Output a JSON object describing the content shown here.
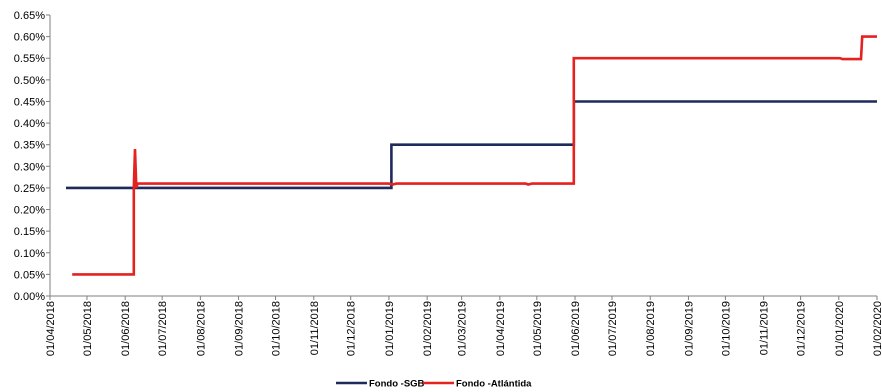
{
  "chart_data": {
    "type": "line",
    "y_ticks": [
      "0.00%",
      "0.05%",
      "0.10%",
      "0.15%",
      "0.20%",
      "0.25%",
      "0.30%",
      "0.35%",
      "0.40%",
      "0.45%",
      "0.50%",
      "0.55%",
      "0.60%",
      "0.65%"
    ],
    "ylim": [
      0,
      0.65
    ],
    "x_ticks": [
      "01/04/2018",
      "01/05/2018",
      "01/06/2018",
      "01/07/2018",
      "01/08/2018",
      "01/09/2018",
      "01/10/2018",
      "01/11/2018",
      "01/12/2018",
      "01/01/2019",
      "01/02/2019",
      "01/03/2019",
      "01/04/2019",
      "01/05/2019",
      "01/06/2019",
      "01/07/2019",
      "01/08/2019",
      "01/09/2019",
      "01/10/2019",
      "01/11/2019",
      "01/12/2019",
      "01/01/2020",
      "01/02/2020"
    ],
    "grid": false,
    "legend": "bottom",
    "series": [
      {
        "name": "Fondo -SGB",
        "color": "#1f2a5c",
        "points": [
          [
            "2018-04-14",
            0.25
          ],
          [
            "2019-01-03",
            0.25
          ],
          [
            "2019-01-03",
            0.35
          ],
          [
            "2019-05-31",
            0.35
          ],
          [
            "2019-05-31",
            0.45
          ],
          [
            "2020-02-01",
            0.45
          ]
        ]
      },
      {
        "name": "Fondo -Atlántida",
        "color": "#e42320",
        "points": [
          [
            "2018-04-19",
            0.05
          ],
          [
            "2018-06-08",
            0.05
          ],
          [
            "2018-06-08",
            0.25
          ],
          [
            "2018-06-09",
            0.34
          ],
          [
            "2018-06-10",
            0.25
          ],
          [
            "2018-06-11",
            0.26
          ],
          [
            "2019-01-01",
            0.26
          ],
          [
            "2019-01-04",
            0.258
          ],
          [
            "2019-01-07",
            0.26
          ],
          [
            "2019-04-22",
            0.26
          ],
          [
            "2019-04-24",
            0.258
          ],
          [
            "2019-04-27",
            0.26
          ],
          [
            "2019-05-31",
            0.26
          ],
          [
            "2019-05-31",
            0.55
          ],
          [
            "2020-01-02",
            0.55
          ],
          [
            "2020-01-04",
            0.548
          ],
          [
            "2020-01-19",
            0.548
          ],
          [
            "2020-01-20",
            0.6
          ],
          [
            "2020-02-01",
            0.6
          ]
        ]
      }
    ]
  }
}
